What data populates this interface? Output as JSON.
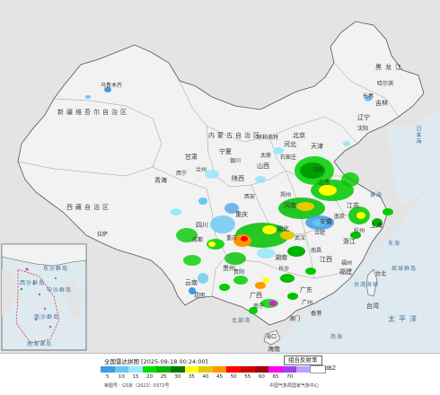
{
  "map": {
    "regions": [
      {
        "name": "新疆维吾尔自治区"
      },
      {
        "name": "西藏自治区"
      },
      {
        "name": "内蒙古自治区"
      }
    ],
    "provinces": [
      "黑龙江",
      "吉林",
      "辽宁",
      "河北",
      "山西",
      "陕西",
      "宁夏",
      "甘肃",
      "青海",
      "四川",
      "重庆",
      "湖北",
      "湖南",
      "江西",
      "浙江",
      "福建",
      "广东",
      "广西",
      "贵州",
      "云南",
      "海南",
      "台湾",
      "安徽",
      "江苏",
      "山东",
      "河南",
      "北京",
      "天津",
      "上海"
    ],
    "cities": [
      "乌鲁木齐",
      "哈尔滨",
      "长春",
      "沈阳",
      "呼和浩特",
      "太原",
      "石家庄",
      "济南",
      "郑州",
      "西安",
      "兰州",
      "西宁",
      "银川",
      "成都",
      "重庆",
      "武汉",
      "长沙",
      "南昌",
      "杭州",
      "南京",
      "合肥",
      "福州",
      "广州",
      "南宁",
      "贵阳",
      "昆明",
      "拉萨",
      "海口",
      "台北",
      "香港",
      "澳门"
    ],
    "seas": [
      "日本海",
      "黄海",
      "东海",
      "南海",
      "太平洋",
      "台湾海峡",
      "琉球群岛",
      "北部湾",
      "南海诸岛",
      "东沙群岛",
      "西沙群岛",
      "中沙群岛",
      "南沙群岛"
    ],
    "colors": {
      "land": "#ececec",
      "sea": "#dfe9f0",
      "border": "#555555",
      "province_border": "#888888"
    }
  },
  "legend": {
    "title": "全国雷达拼图 [2025-09-18 00:24:00]",
    "product": "组合反射率",
    "unit": "dBZ",
    "ticks": [
      "5",
      "10",
      "15",
      "20",
      "25",
      "30",
      "35",
      "40",
      "45",
      "50",
      "55",
      "60",
      "65",
      "70"
    ],
    "colors": [
      "#3f9be6",
      "#66c8f0",
      "#9be8f7",
      "#00e000",
      "#00b400",
      "#007800",
      "#ffff00",
      "#e8c800",
      "#ff9600",
      "#ff0000",
      "#d00000",
      "#a00000",
      "#ff00f0",
      "#a040f0",
      "#c0a0ff",
      "#ffffff"
    ],
    "approval": "审图号：GS京（2022）0372号",
    "source": "中国气象局国家气象中心"
  }
}
